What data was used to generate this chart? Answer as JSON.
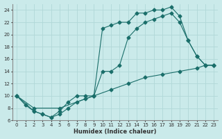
{
  "xlabel": "Humidex (Indice chaleur)",
  "bg_color": "#caeaea",
  "grid_color": "#b0d8d8",
  "line_color": "#1a6e6a",
  "xlim": [
    -0.5,
    23.5
  ],
  "ylim": [
    6,
    25
  ],
  "xticks": [
    0,
    1,
    2,
    3,
    4,
    5,
    6,
    7,
    8,
    9,
    10,
    11,
    12,
    13,
    14,
    15,
    16,
    17,
    18,
    19,
    20,
    21,
    22,
    23
  ],
  "yticks": [
    6,
    8,
    10,
    12,
    14,
    16,
    18,
    20,
    22,
    24
  ],
  "line1_x": [
    0,
    1,
    2,
    3,
    4,
    5,
    6,
    7,
    8,
    9,
    10,
    11,
    12,
    13,
    14,
    15,
    16,
    17,
    18,
    19,
    20,
    21,
    22,
    23
  ],
  "line1_y": [
    10,
    8.5,
    7.5,
    7,
    6.5,
    7,
    8,
    9,
    9.5,
    10,
    21,
    21.5,
    22,
    22,
    23.5,
    23.5,
    24,
    24,
    24.5,
    23,
    19,
    16.5,
    15,
    15
  ],
  "line2_x": [
    0,
    2,
    3,
    4,
    5,
    6,
    7,
    8,
    9,
    10,
    11,
    12,
    13,
    14,
    15,
    16,
    17,
    18,
    19,
    20,
    21,
    22,
    23
  ],
  "line2_y": [
    10,
    7.5,
    7,
    6.5,
    7.5,
    9,
    10,
    10,
    10,
    14,
    14,
    15,
    19.5,
    21,
    22,
    22.5,
    23,
    23.5,
    22,
    19,
    16.5,
    15,
    15
  ],
  "line3_x": [
    0,
    2,
    5,
    9,
    11,
    13,
    15,
    17,
    19,
    21,
    22,
    23
  ],
  "line3_y": [
    10,
    8,
    8,
    10,
    11,
    12,
    13,
    13.5,
    14,
    14.5,
    15,
    15
  ]
}
